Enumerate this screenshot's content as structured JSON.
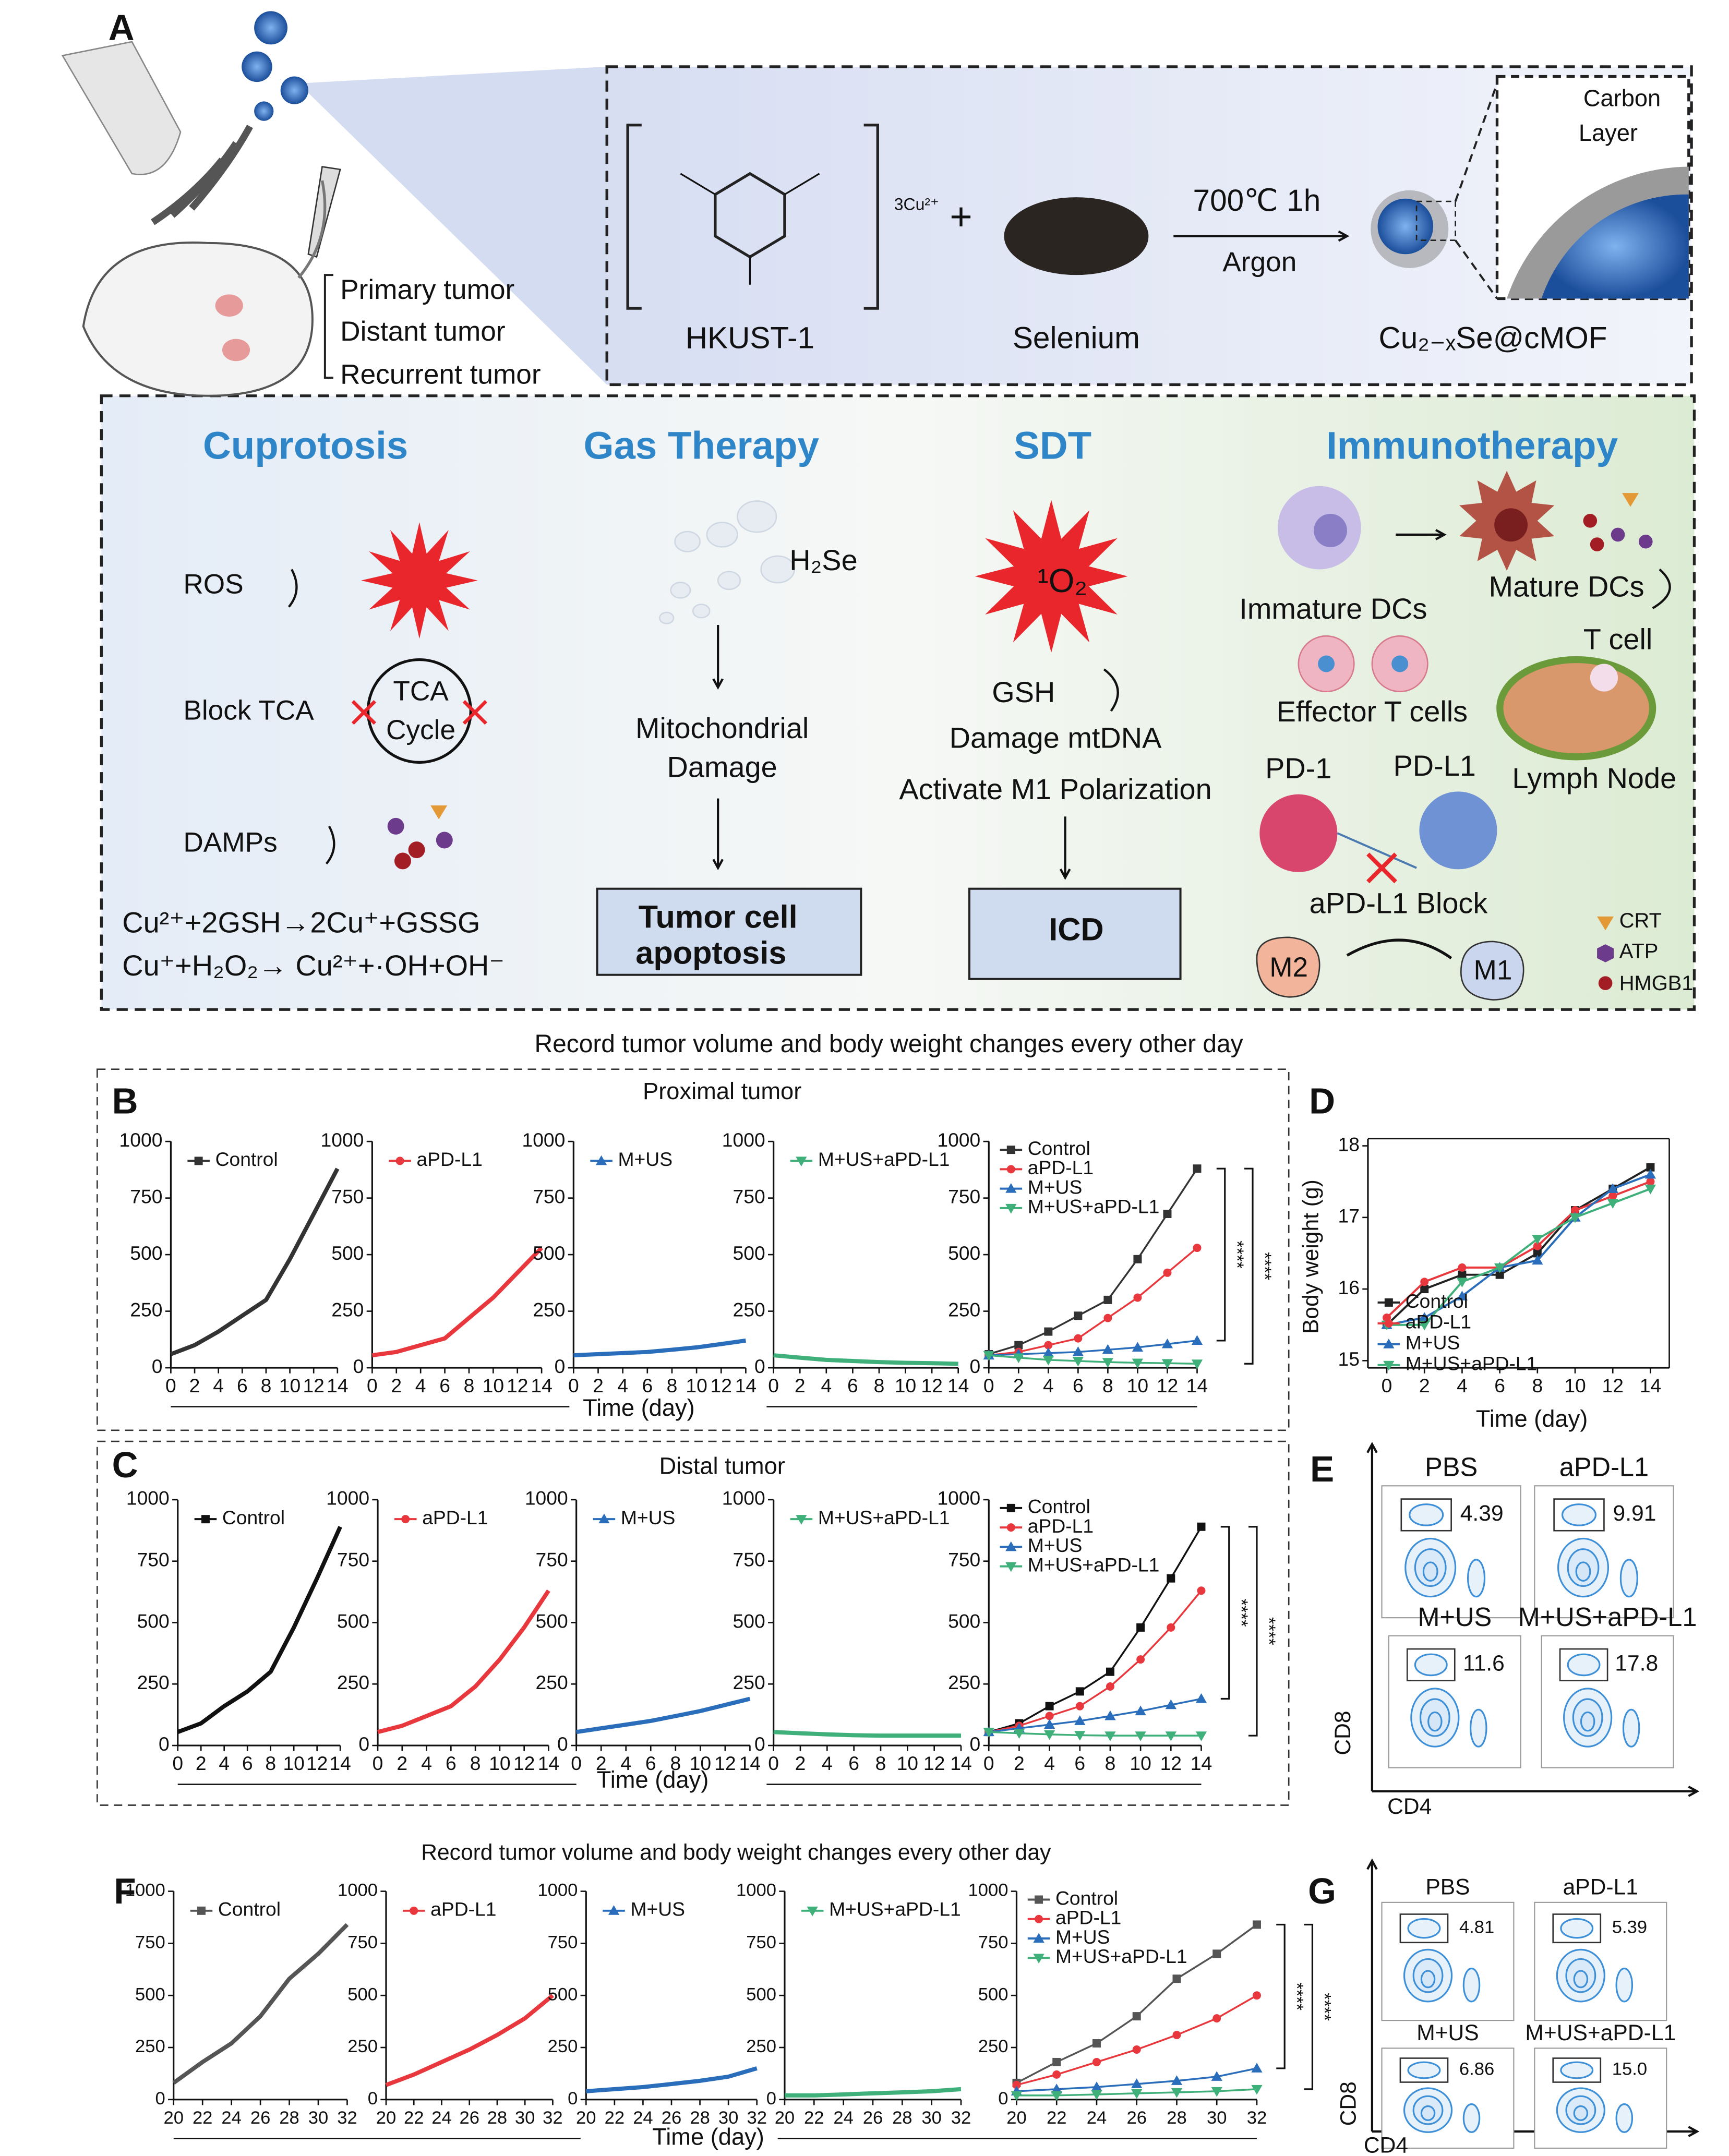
{
  "panel_a": {
    "label": "A",
    "tumors": [
      "Primary tumor",
      "Distant tumor",
      "Recurrent tumor"
    ],
    "synthesis": {
      "reactant1": "HKUST-1",
      "charge": "3Cu²⁺",
      "plus": "+",
      "reactant2": "Selenium",
      "condition": "700℃ 1h",
      "gas": "Argon",
      "product": "Cu₂₋ₓSe@cMOF",
      "zoom": [
        "Carbon",
        "Layer"
      ]
    },
    "cuprotosis": {
      "title": "Cuprotosis",
      "items": [
        "ROS",
        "Block TCA",
        "DAMPs"
      ],
      "tca": [
        "TCA",
        "Cycle"
      ],
      "equations": [
        "Cu²⁺+2GSH→2Cu⁺+GSSG",
        "Cu⁺+H₂O₂→ Cu²⁺+·OH+OH⁻"
      ]
    },
    "gas": {
      "title": "Gas Therapy",
      "gas": "H₂Se",
      "effect": [
        "Mitochondrial",
        "Damage"
      ],
      "outcome": [
        "Tumor cell",
        "apoptosis"
      ]
    },
    "sdt": {
      "title": "SDT",
      "species": "¹O₂",
      "effects": [
        "GSH",
        "Damage mtDNA",
        "Activate M1 Polarization"
      ],
      "outcome": "ICD"
    },
    "immuno": {
      "title": "Immunotherapy",
      "labels": [
        "Immature DCs",
        "Mature DCs",
        "T cell",
        "Effector T cells",
        "Lymph Node",
        "PD-1",
        "PD-L1",
        "aPD-L1 Block",
        "M2",
        "M1"
      ],
      "legend": [
        "CRT",
        "ATP",
        "HMGB1"
      ]
    }
  },
  "chart_data": [
    {
      "type": "line",
      "panel": "B",
      "title": "Record tumor volume and body weight  changes every other day",
      "subtitle": "Proximal tumor",
      "xlabel": "Time (day)",
      "x": [
        0,
        2,
        4,
        6,
        8,
        10,
        12,
        14
      ],
      "xlim": [
        0,
        14
      ],
      "xticks": [
        0,
        2,
        4,
        6,
        8,
        10,
        12,
        14
      ],
      "ylim": [
        0,
        1000
      ],
      "yticks": [
        0,
        250,
        500,
        750,
        1000
      ],
      "series": [
        {
          "name": "Control",
          "color": "#333333",
          "values": [
            60,
            100,
            160,
            230,
            300,
            480,
            680,
            880
          ]
        },
        {
          "name": "aPD-L1",
          "color": "#e8383d",
          "values": [
            55,
            70,
            100,
            130,
            220,
            310,
            420,
            530
          ]
        },
        {
          "name": "M+US",
          "color": "#2a6ebb",
          "values": [
            55,
            60,
            65,
            70,
            80,
            90,
            105,
            120
          ]
        },
        {
          "name": "M+US+aPD-L1",
          "color": "#3fb07a",
          "values": [
            55,
            45,
            35,
            30,
            25,
            22,
            20,
            18
          ]
        }
      ],
      "significance": [
        "****",
        "****"
      ]
    },
    {
      "type": "line",
      "panel": "C",
      "subtitle": "Distal tumor",
      "xlabel": "Time (day)",
      "x": [
        0,
        2,
        4,
        6,
        8,
        10,
        12,
        14
      ],
      "xlim": [
        0,
        14
      ],
      "xticks": [
        0,
        2,
        4,
        6,
        8,
        10,
        12,
        14
      ],
      "ylim": [
        0,
        1000
      ],
      "yticks": [
        0,
        250,
        500,
        750,
        1000
      ],
      "series": [
        {
          "name": "Control",
          "color": "#111111",
          "values": [
            55,
            90,
            160,
            220,
            300,
            480,
            680,
            890
          ]
        },
        {
          "name": "aPD-L1",
          "color": "#e8383d",
          "values": [
            55,
            80,
            120,
            160,
            240,
            350,
            480,
            630
          ]
        },
        {
          "name": "M+US",
          "color": "#2a6ebb",
          "values": [
            55,
            70,
            85,
            100,
            120,
            140,
            165,
            190
          ]
        },
        {
          "name": "M+US+aPD-L1",
          "color": "#3fb07a",
          "values": [
            55,
            50,
            45,
            42,
            40,
            40,
            40,
            40
          ]
        }
      ],
      "significance": [
        "****",
        "****"
      ]
    },
    {
      "type": "line",
      "panel": "D",
      "xlabel": "Time (day)",
      "ylabel": "Body weight (g)",
      "x": [
        0,
        2,
        4,
        6,
        8,
        10,
        12,
        14
      ],
      "xlim": [
        -1,
        15
      ],
      "xticks": [
        0,
        2,
        4,
        6,
        8,
        10,
        12,
        14
      ],
      "ylim": [
        14.9,
        18.1
      ],
      "yticks": [
        15,
        16,
        17,
        18
      ],
      "series": [
        {
          "name": "Control",
          "color": "#222222",
          "values": [
            15.5,
            16.0,
            16.2,
            16.2,
            16.5,
            17.1,
            17.4,
            17.7
          ]
        },
        {
          "name": "aPD-L1",
          "color": "#e8383d",
          "values": [
            15.6,
            16.1,
            16.3,
            16.3,
            16.6,
            17.1,
            17.3,
            17.5
          ]
        },
        {
          "name": "M+US",
          "color": "#2a6ebb",
          "values": [
            15.5,
            15.6,
            15.9,
            16.3,
            16.4,
            17.0,
            17.4,
            17.6
          ]
        },
        {
          "name": "M+US+aPD-L1",
          "color": "#3fb07a",
          "values": [
            15.5,
            15.5,
            16.1,
            16.3,
            16.7,
            17.0,
            17.2,
            17.4
          ]
        }
      ]
    },
    {
      "type": "line",
      "panel": "F",
      "title": "Record tumor volume and body weight  changes every other day",
      "xlabel": "Time (day)",
      "x": [
        20,
        22,
        24,
        26,
        28,
        30,
        32
      ],
      "xlim": [
        20,
        32
      ],
      "xticks": [
        20,
        22,
        24,
        26,
        28,
        30,
        32
      ],
      "ylim": [
        0,
        1000
      ],
      "yticks": [
        0,
        250,
        500,
        750,
        1000
      ],
      "series": [
        {
          "name": "Control",
          "color": "#555555",
          "values": [
            80,
            180,
            270,
            400,
            580,
            700,
            840
          ]
        },
        {
          "name": "aPD-L1",
          "color": "#e8383d",
          "values": [
            70,
            120,
            180,
            240,
            310,
            390,
            500
          ]
        },
        {
          "name": "M+US",
          "color": "#2a6ebb",
          "values": [
            40,
            50,
            60,
            75,
            90,
            110,
            150
          ]
        },
        {
          "name": "M+US+aPD-L1",
          "color": "#3fb07a",
          "values": [
            20,
            20,
            25,
            30,
            35,
            40,
            50
          ]
        }
      ],
      "significance": [
        "****",
        "****"
      ]
    }
  ],
  "panel_e": {
    "label": "E",
    "xlabel": "CD4",
    "ylabel": "CD8",
    "groups": [
      "PBS",
      "aPD-L1",
      "M+US",
      "M+US+aPD-L1"
    ],
    "values": [
      4.39,
      9.91,
      11.6,
      17.8
    ]
  },
  "panel_g": {
    "label": "G",
    "xlabel": "CD4",
    "ylabel": "CD8",
    "groups": [
      "PBS",
      "aPD-L1",
      "M+US",
      "M+US+aPD-L1"
    ],
    "values": [
      4.81,
      5.39,
      6.86,
      15.0
    ],
    "value_labels": [
      "4.81",
      "5.39",
      "6.86",
      "15.0"
    ]
  }
}
